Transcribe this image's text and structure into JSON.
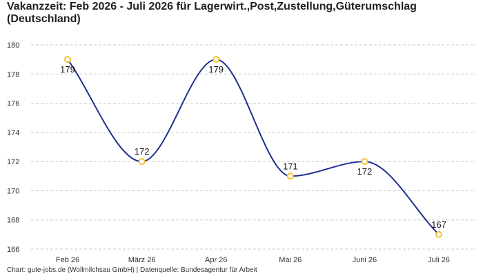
{
  "chart_data": {
    "type": "line",
    "title": "Vakanzzeit: Feb 2026 - Juli 2026 für Lagerwirt.,Post,Zustellung,Güterumschlag (Deutschland)",
    "categories": [
      "Feb 26",
      "März 26",
      "Apr 26",
      "Mai 26",
      "Juni 26",
      "Juli 26"
    ],
    "series": [
      {
        "values": [
          179,
          172,
          179,
          171,
          172,
          167
        ]
      }
    ],
    "ylim": [
      166,
      180
    ],
    "yticks": [
      166,
      168,
      170,
      172,
      174,
      176,
      178,
      180
    ],
    "grid": true,
    "smooth": true,
    "line_color": "#1f2f8f",
    "marker_color": "#f2c230",
    "xlabel": "",
    "ylabel": ""
  },
  "footer": {
    "source": "Chart: gute-jobs.de (Wollmilchsau GmbH) | Datenquelle: Bundesagentur für Arbeit"
  }
}
